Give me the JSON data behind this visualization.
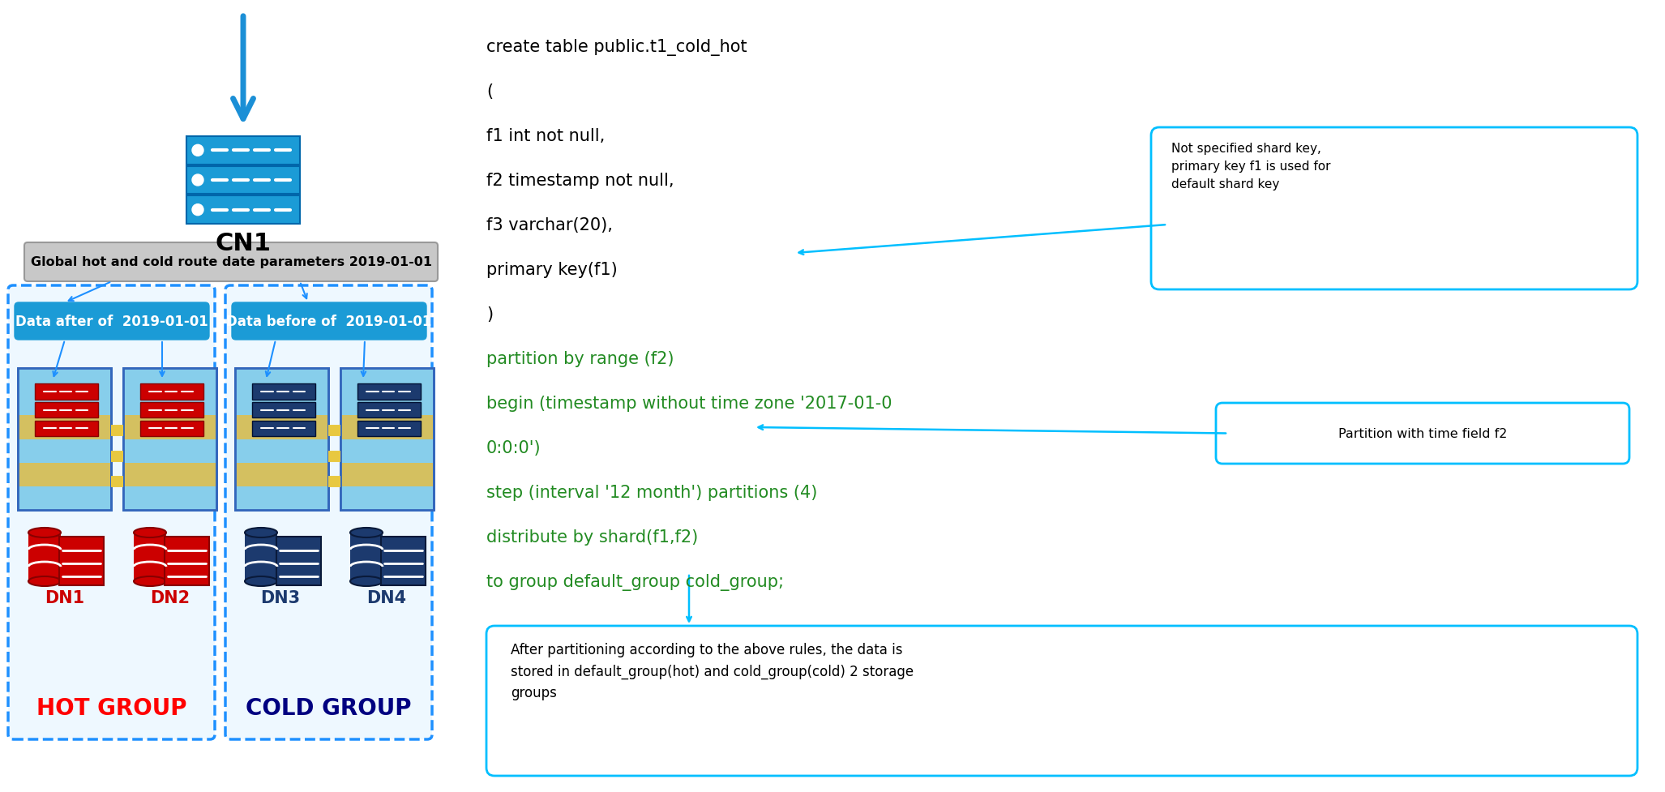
{
  "bg_color": "#ffffff",
  "cn1_label": "CN1",
  "global_route_text": "Global hot and cold route date parameters 2019-01-01",
  "hot_group_label": "HOT GROUP",
  "cold_group_label": "COLD GROUP",
  "hot_banner_text": "Data after of  2019-01-01",
  "cold_banner_text": "Data before of  2019-01-01",
  "dn1_label": "DN1",
  "dn2_label": "DN2",
  "dn3_label": "DN3",
  "dn4_label": "DN4",
  "sql_lines": [
    "create table public.t1_cold_hot",
    "(",
    "f1 int not null,",
    "f2 timestamp not null,",
    "f3 varchar(20),",
    "primary key(f1)",
    ")",
    "partition by range (f2)",
    "begin (timestamp without time zone '2017-01-0",
    "0:0:0')",
    "step (interval '12 month') partitions (4)",
    "distribute by shard(f1,f2)",
    "to group default_group cold_group;"
  ],
  "sql_colors": [
    "#000000",
    "#000000",
    "#000000",
    "#000000",
    "#000000",
    "#000000",
    "#000000",
    "#228B22",
    "#228B22",
    "#228B22",
    "#228B22",
    "#228B22",
    "#228B22"
  ],
  "callout1_text": "Not specified shard key,\nprimary key f1 is used for\ndefault shard key",
  "callout2_text": "Partition with time field f2",
  "callout3_text": "After partitioning according to the above rules, the data is\nstored in default_group(hot) and cold_group(cold) 2 storage\ngroups",
  "stripe_colors_hot": [
    "#87CEEB",
    "#D4BC6A",
    "#87CEEB",
    "#D4BC6A",
    "#87CEEB",
    "#87CEEB"
  ],
  "stripe_colors_cold": [
    "#87CEEB",
    "#D4BC6A",
    "#87CEEB",
    "#D4BC6A",
    "#87CEEB",
    "#87CEEB"
  ],
  "arrow_color": "#1E90FF",
  "callout_border": "#00BFFF",
  "hot_text_color": "#FF0000",
  "cold_text_color": "#000080",
  "server_hot_color": "#CC0000",
  "server_cold_color": "#1C3A6E",
  "banner_color": "#1B9BD6",
  "group_border_color": "#1E90FF",
  "route_box_bg": "#C8C8C8",
  "route_box_border": "#999999"
}
